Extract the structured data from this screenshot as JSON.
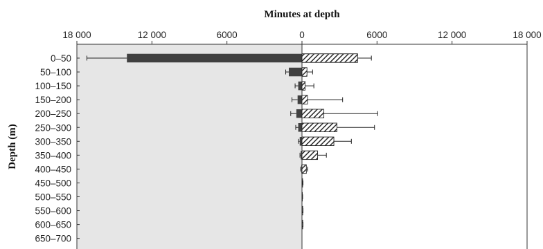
{
  "chart_data": {
    "type": "bar",
    "orientation": "horizontal-diverging",
    "title": "Minutes at depth",
    "xlabel": "Minutes at depth",
    "ylabel": "Depth (m)",
    "xlim": [
      -18000,
      18000
    ],
    "x_tick_values": [
      -18000,
      -12000,
      -6000,
      0,
      6000,
      12000,
      18000
    ],
    "x_tick_labels": [
      "18 000",
      "12 000",
      "6000",
      "0",
      "6000",
      "12 000",
      "18 000"
    ],
    "categories": [
      "0–50",
      "50–100",
      "100–150",
      "150–200",
      "200–250",
      "250–300",
      "300–350",
      "350–400",
      "400–450",
      "450–500",
      "500–550",
      "550–600",
      "600–650",
      "650–700"
    ],
    "series": [
      {
        "side": "left",
        "fill": "solid",
        "values": [
          14000,
          1050,
          300,
          350,
          450,
          300,
          180,
          100,
          50,
          0,
          0,
          0,
          0,
          0
        ],
        "errors": [
          3200,
          250,
          250,
          450,
          450,
          200,
          100,
          60,
          50,
          0,
          0,
          0,
          0,
          0
        ]
      },
      {
        "side": "right",
        "fill": "hatched",
        "values": [
          4450,
          400,
          250,
          450,
          1750,
          2800,
          2550,
          1250,
          350,
          50,
          30,
          60,
          60,
          0
        ],
        "errors": [
          1100,
          450,
          700,
          2800,
          4300,
          3000,
          1400,
          700,
          100,
          30,
          20,
          20,
          20,
          0
        ]
      }
    ],
    "colors": {
      "solid": "#404040",
      "hatch": "#2a2a2a",
      "left_background": "#e6e6e6"
    },
    "grid": false
  }
}
